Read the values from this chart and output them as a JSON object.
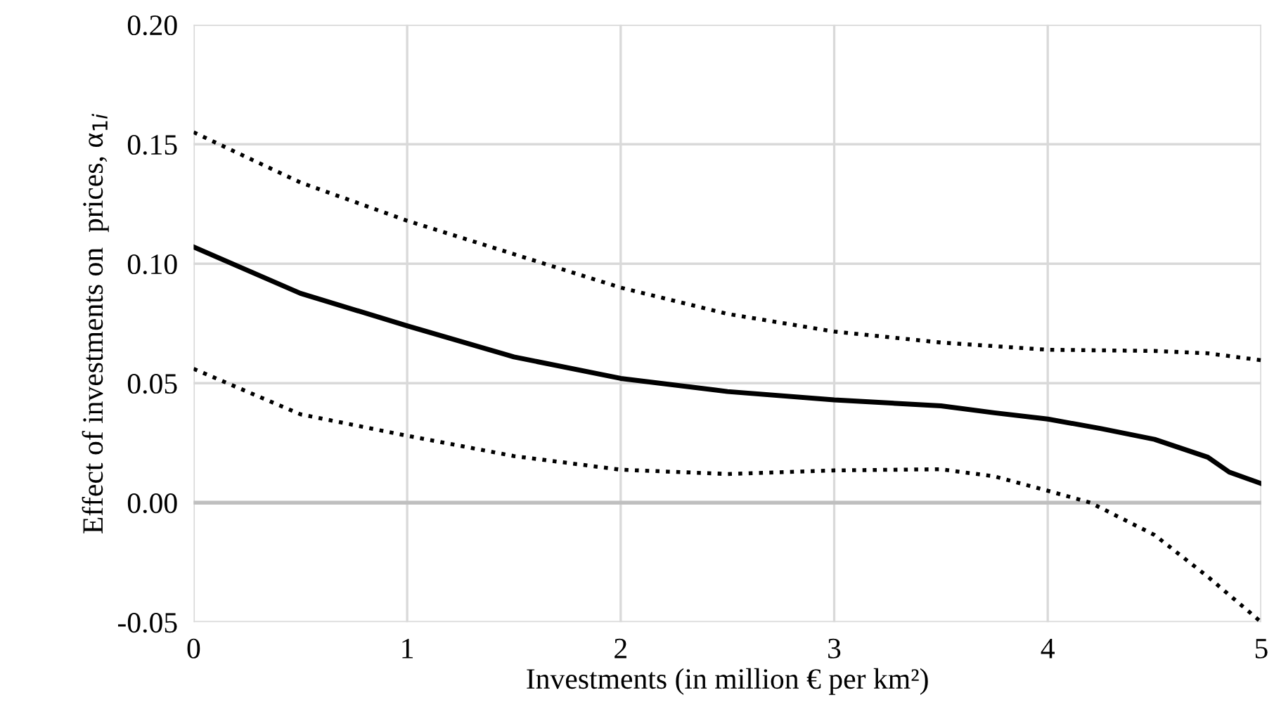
{
  "chart_data": {
    "type": "line",
    "xlabel": "Investments (in million € per km²)",
    "ylabel": "Effect of investments on  prices, α$_{1i}$",
    "xlim": [
      0,
      5
    ],
    "xticks": [
      0,
      1,
      2,
      3,
      4,
      5
    ],
    "ylim": [
      -0.05,
      0.2
    ],
    "yticks": [
      {
        "value": -0.05,
        "label": "-0.05"
      },
      {
        "value": 0,
        "label": "0.00"
      },
      {
        "value": 0.05,
        "label": "0.05"
      },
      {
        "value": 0.1,
        "label": "0.10"
      },
      {
        "value": 0.15,
        "label": "0.15"
      },
      {
        "value": 0.2,
        "label": "0.20"
      }
    ],
    "grid": true,
    "legend": false,
    "marker": "none",
    "ref_lines": [
      {
        "axis": "y",
        "value": 0,
        "color": "#bfbfbf"
      }
    ],
    "series": [
      {
        "color": "#000000",
        "line_style": "dotted",
        "x": [
          0,
          0.5,
          1,
          1.5,
          2,
          2.5,
          3,
          3.5,
          4,
          4.5,
          4.75,
          5
        ],
        "values": [
          0.155,
          0.134,
          0.118,
          0.104,
          0.09,
          0.079,
          0.0716,
          0.067,
          0.064,
          0.0635,
          0.0625,
          0.0596
        ]
      },
      {
        "color": "#000000",
        "line_style": "solid",
        "x": [
          0,
          0.5,
          1,
          1.5,
          2,
          2.5,
          3,
          3.5,
          3.75,
          4,
          4.25,
          4.5,
          4.75,
          4.85,
          5
        ],
        "values": [
          0.107,
          0.0876,
          0.074,
          0.061,
          0.052,
          0.0465,
          0.043,
          0.0405,
          0.0376,
          0.035,
          0.031,
          0.0265,
          0.019,
          0.0128,
          0.008
        ]
      },
      {
        "color": "#000000",
        "line_style": "dotted",
        "x": [
          0,
          0.5,
          1,
          1.5,
          2,
          2.5,
          3,
          3.5,
          3.75,
          4,
          4.2,
          4.5,
          4.75,
          5
        ],
        "values": [
          0.056,
          0.037,
          0.028,
          0.0195,
          0.0138,
          0.012,
          0.0135,
          0.014,
          0.011,
          0.005,
          0.0,
          -0.0135,
          -0.031,
          -0.05
        ]
      }
    ]
  }
}
